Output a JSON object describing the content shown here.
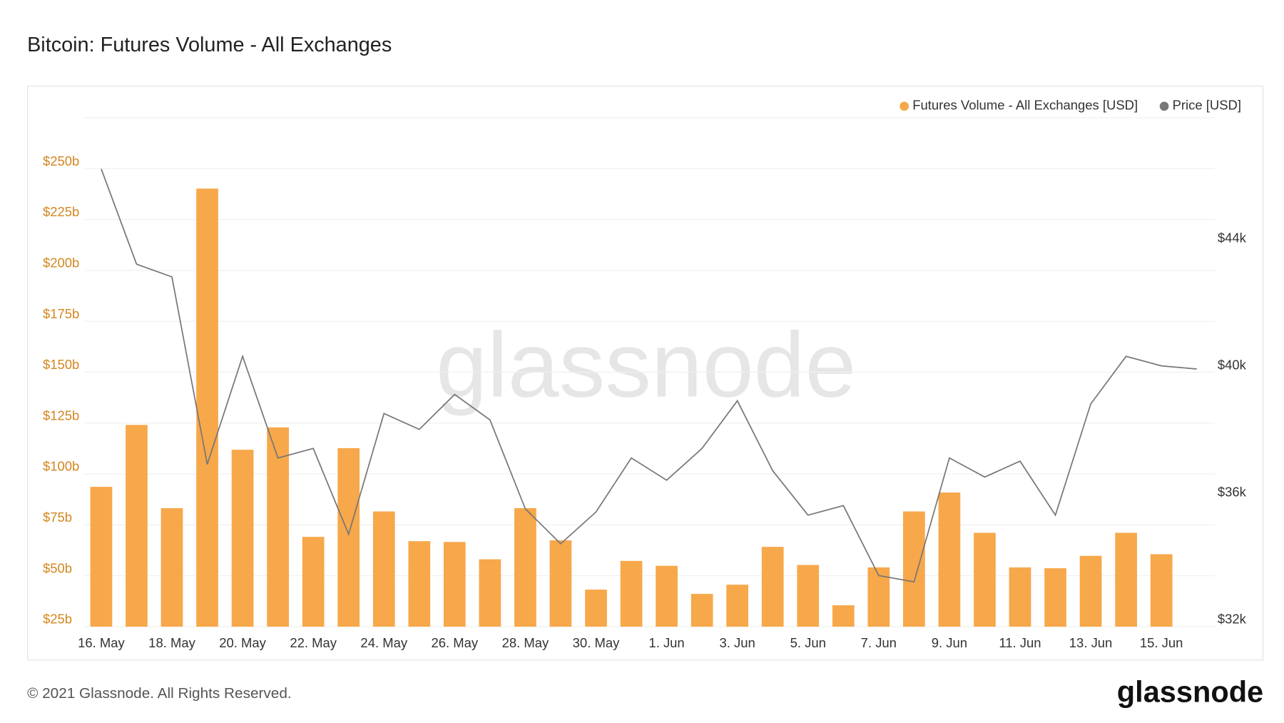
{
  "chart_data": {
    "type": "bar",
    "title": "Bitcoin: Futures Volume - All Exchanges",
    "categories": [
      "16. May",
      null,
      "18. May",
      null,
      "20. May",
      null,
      "22. May",
      null,
      "24. May",
      null,
      "26. May",
      null,
      "28. May",
      null,
      "30. May",
      null,
      "1. Jun",
      null,
      "3. Jun",
      null,
      "5. Jun",
      null,
      "7. Jun",
      null,
      "9. Jun",
      null,
      "11. Jun",
      null,
      "13. Jun",
      null,
      "15. Jun",
      null
    ],
    "series": [
      {
        "name": "Futures Volume - All Exchanges [USD]",
        "type": "bar",
        "color": "#f7a84a",
        "values": [
          93700000000.0,
          124100000000.0,
          83200000000.0,
          240200000000.0,
          111900000000.0,
          122900000000.0,
          69100000000.0,
          112700000000.0,
          81600000000.0,
          67000000000.0,
          66600000000.0,
          58100000000.0,
          83200000000.0,
          67400000000.0,
          43200000000.0,
          57300000000.0,
          54900000000.0,
          41100000000.0,
          45600000000.0,
          64200000000.0,
          55300000000.0,
          35500000000.0,
          54100000000.0,
          81600000000.0,
          90900000000.0,
          71100000000.0,
          54100000000.0,
          53700000000.0,
          59800000000.0,
          71100000000.0,
          60600000000.0,
          null
        ]
      },
      {
        "name": "Price [USD]",
        "type": "line",
        "axis": "y2",
        "color": "#777777",
        "values": [
          46200,
          43200,
          42800,
          36900,
          40300,
          37100,
          37400,
          34700,
          38500,
          38000,
          39100,
          38300,
          35500,
          34400,
          35400,
          37100,
          36400,
          37400,
          38900,
          36700,
          35300,
          35600,
          33400,
          33200,
          37100,
          36500,
          37000,
          35300,
          38800,
          40300,
          40000,
          39900
        ]
      }
    ],
    "ylim": [
      25000000000.0,
      275000000000.0
    ],
    "yticks": [
      {
        "value": 25000000000.0,
        "label": "$25b"
      },
      {
        "value": 50000000000.0,
        "label": "$50b"
      },
      {
        "value": 75000000000.0,
        "label": "$75b"
      },
      {
        "value": 100000000000.0,
        "label": "$100b"
      },
      {
        "value": 125000000000.0,
        "label": "$125b"
      },
      {
        "value": 150000000000.0,
        "label": "$150b"
      },
      {
        "value": 175000000000.0,
        "label": "$175b"
      },
      {
        "value": 200000000000.0,
        "label": "$200b"
      },
      {
        "value": 225000000000.0,
        "label": "$225b"
      },
      {
        "value": 250000000000.0,
        "label": "$250b"
      }
    ],
    "y2lim": [
      31790,
      47810
    ],
    "y2ticks": [
      {
        "value": 32000,
        "label": "$32k"
      },
      {
        "value": 36000,
        "label": "$36k"
      },
      {
        "value": 40000,
        "label": "$40k"
      },
      {
        "value": 44000,
        "label": "$44k"
      }
    ],
    "grid": true,
    "legend": "top-right"
  },
  "watermark": "glassnode",
  "footer": {
    "copyright": "© 2021 Glassnode. All Rights Reserved.",
    "logo": "glassnode"
  }
}
